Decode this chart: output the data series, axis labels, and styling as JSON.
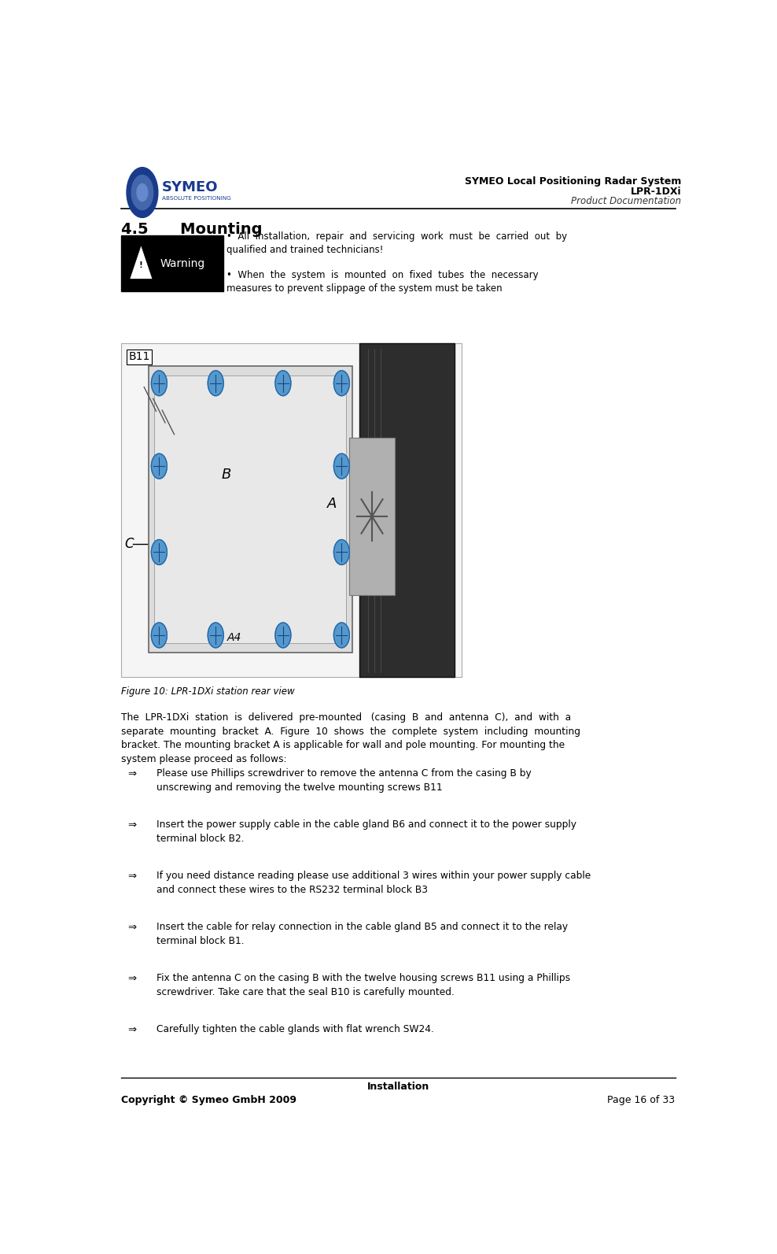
{
  "page_width": 9.88,
  "page_height": 15.93,
  "bg_color": "#ffffff",
  "header_title_line1": "SYMEO Local Positioning Radar System",
  "header_title_line2": "LPR-1DXi",
  "header_title_line3": "Product Documentation",
  "logo_text": "SYMEO",
  "logo_sub": "ABSOLUTE POSITIONING",
  "section_title": "4.5      Mounting",
  "warning_text1": "All  installation,  repair  and  servicing  work  must  be  carried  out  by\nqualified and trained technicians!",
  "warning_text2": "When  the  system  is  mounted  on  fixed  tubes  the  necessary\nmeasures to prevent slippage of the system must be taken",
  "figure_caption": "Figure 10: LPR-1DXi station rear view",
  "body_text": "The  LPR-1DXi  station  is  delivered  pre-mounted   (casing  B  and  antenna  C),  and  with  a\nseparate  mounting  bracket  A.  Figure  10  shows  the  complete  system  including  mounting\nbracket. The mounting bracket A is applicable for wall and pole mounting. For mounting the\nsystem please proceed as follows:",
  "bullets": [
    "Please use Phillips screwdriver to remove the antenna C from the casing B by\nunscrewing and removing the twelve mounting screws B11",
    "Insert the power supply cable in the cable gland B6 and connect it to the power supply\nterminal block B2.",
    "If you need distance reading please use additional 3 wires within your power supply cable\nand connect these wires to the RS232 terminal block B3",
    "Insert the cable for relay connection in the cable gland B5 and connect it to the relay\nterminal block B1.",
    "Fix the antenna C on the casing B with the twelve housing screws B11 using a Phillips\nscrewdriver. Take care that the seal B10 is carefully mounted.",
    "Carefully tighten the cable glands with flat wrench SW24."
  ],
  "footer_center": "Installation",
  "footer_left": "Copyright © Symeo GmbH 2009",
  "footer_right": "Page 16 of 33",
  "bullet_symbol": "⇒",
  "warning_label": "Warning"
}
